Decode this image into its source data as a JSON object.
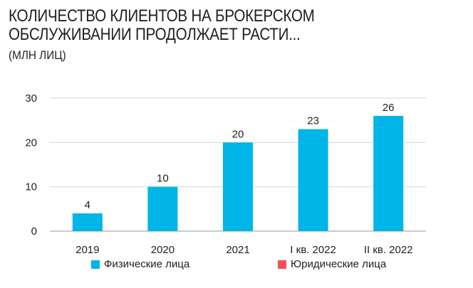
{
  "chart_data": {
    "type": "bar",
    "title": "КОЛИЧЕСТВО КЛИЕНТОВ НА БРОКЕРСКОМ ОБСЛУЖИВАНИИ ПРОДОЛЖАЕТ РАСТИ...",
    "subtitle": "(МЛН ЛИЦ)",
    "xlabel": "",
    "ylabel": "",
    "ylim": [
      0,
      30
    ],
    "yticks": [
      "0",
      "10",
      "20",
      "30"
    ],
    "grid": true,
    "categories": [
      "2019",
      "2020",
      "2021",
      "I кв. 2022",
      "II кв. 2022"
    ],
    "series": [
      {
        "name": "Физические лица",
        "color": "#00b5e8",
        "values": [
          4,
          10,
          20,
          23,
          26
        ],
        "labels": [
          "4",
          "10",
          "20",
          "23",
          "26"
        ]
      },
      {
        "name": "Юридические лица",
        "color": "#f0525a",
        "values": [
          0,
          0,
          0,
          0,
          0
        ]
      }
    ],
    "legend_position": "bottom"
  }
}
